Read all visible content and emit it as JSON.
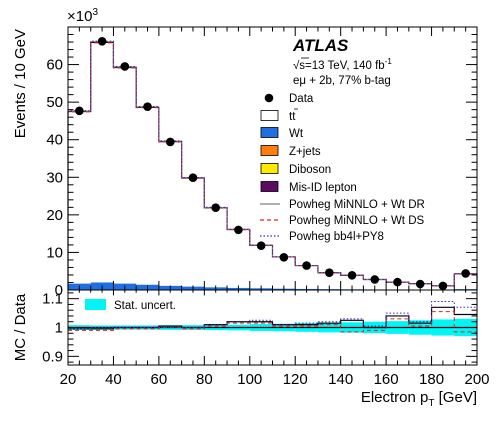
{
  "chart_data": {
    "type": "bar",
    "experiment": "ATLAS",
    "info_lines": [
      "s=13 TeV, 140 fb",
      "eμ + 2b, 77% b-tag"
    ],
    "sqrt_s_text": "√s=13 TeV, 140 fb",
    "lumi_sup": "-1",
    "selection": "eμ + 2b, 77% b-tag",
    "xlabel": "Electron p",
    "xlabel_sub": "T",
    "xlabel_unit": " [GeV]",
    "ylabel": "Events / 10 GeV",
    "y_multiplier": "×10",
    "y_multiplier_exp": "3",
    "ratio_ylabel": "MC / Data",
    "xlim": [
      20,
      200
    ],
    "ylim": [
      0,
      70
    ],
    "ratio_ylim": [
      0.87,
      1.13
    ],
    "x_ticks": [
      "20",
      "40",
      "60",
      "80",
      "100",
      "120",
      "140",
      "160",
      "180",
      "200"
    ],
    "y_ticks": [
      "0",
      "10",
      "20",
      "30",
      "40",
      "50",
      "60"
    ],
    "ratio_ticks": [
      "0.9",
      "1",
      "1.1"
    ],
    "bin_edges": [
      20,
      30,
      40,
      50,
      60,
      70,
      80,
      90,
      100,
      110,
      120,
      130,
      140,
      150,
      160,
      170,
      180,
      190,
      200
    ],
    "data_points": [
      47.7,
      66.2,
      59.5,
      48.8,
      39.4,
      29.9,
      21.9,
      16.0,
      11.8,
      8.7,
      6.5,
      4.6,
      3.9,
      2.8,
      2.1,
      1.6,
      1.1,
      4.4
    ],
    "ttbar_stack": [
      47.5,
      65.9,
      59.2,
      48.6,
      39.5,
      29.8,
      21.9,
      16.1,
      11.9,
      8.8,
      6.5,
      4.6,
      3.9,
      2.8,
      2.1,
      1.7,
      1.1,
      4.3
    ],
    "wt_stack": [
      1.7,
      2.0,
      1.7,
      1.4,
      1.1,
      0.9,
      0.7,
      0.55,
      0.45,
      0.35,
      0.28,
      0.22,
      0.18,
      0.14,
      0.11,
      0.09,
      0.07,
      0.22
    ],
    "ratio_dr": [
      0.995,
      0.995,
      1.0,
      1.0,
      1.005,
      1.0,
      1.01,
      1.02,
      1.02,
      1.01,
      1.01,
      1.015,
      1.025,
      1.0,
      1.04,
      1.015,
      1.07,
      1.045
    ],
    "ratio_ds": [
      0.99,
      0.99,
      0.995,
      0.995,
      1.0,
      0.995,
      1.005,
      1.015,
      1.015,
      1.005,
      1.005,
      1.01,
      0.985,
      0.99,
      1.03,
      1.005,
      1.055,
      0.985
    ],
    "ratio_bb4l": [
      0.995,
      1.0,
      1.0,
      1.0,
      1.0,
      1.0,
      1.01,
      1.02,
      1.025,
      1.01,
      1.015,
      1.02,
      1.03,
      1.005,
      1.05,
      1.02,
      1.09,
      1.07
    ],
    "stat_uncert_half": [
      0.008,
      0.007,
      0.007,
      0.007,
      0.008,
      0.008,
      0.009,
      0.01,
      0.012,
      0.013,
      0.015,
      0.017,
      0.018,
      0.02,
      0.022,
      0.025,
      0.028,
      0.03
    ],
    "legend": [
      {
        "label": "Data",
        "kind": "marker"
      },
      {
        "label": "tt",
        "kind": "box",
        "color": "#ffffff",
        "overline": true
      },
      {
        "label": "Wt",
        "kind": "box",
        "color": "#1f6fe0"
      },
      {
        "label": "Z+jets",
        "kind": "box",
        "color": "#ff7f0e"
      },
      {
        "label": "Diboson",
        "kind": "box",
        "color": "#ffea00"
      },
      {
        "label": "Mis-ID lepton",
        "kind": "box",
        "color": "#5e0a63"
      },
      {
        "label": "Powheg MiNNLO + Wt DR",
        "kind": "line",
        "color": "#7f7f7f",
        "dash": ""
      },
      {
        "label": "Powheg MiNNLO + Wt DS",
        "kind": "line",
        "color": "#e8201a",
        "dash": "4,3"
      },
      {
        "label": "Powheg bb4l+PY8",
        "kind": "line",
        "color": "#2a2ad0",
        "dash": "1.5,2"
      }
    ],
    "ratio_legend": "Stat. uncert.",
    "colors": {
      "stat_band": "#00f5f5",
      "wt": "#1f6fe0",
      "dr": "#7f7f7f",
      "ds": "#e8201a",
      "bb4l": "#2a2ad0"
    }
  }
}
